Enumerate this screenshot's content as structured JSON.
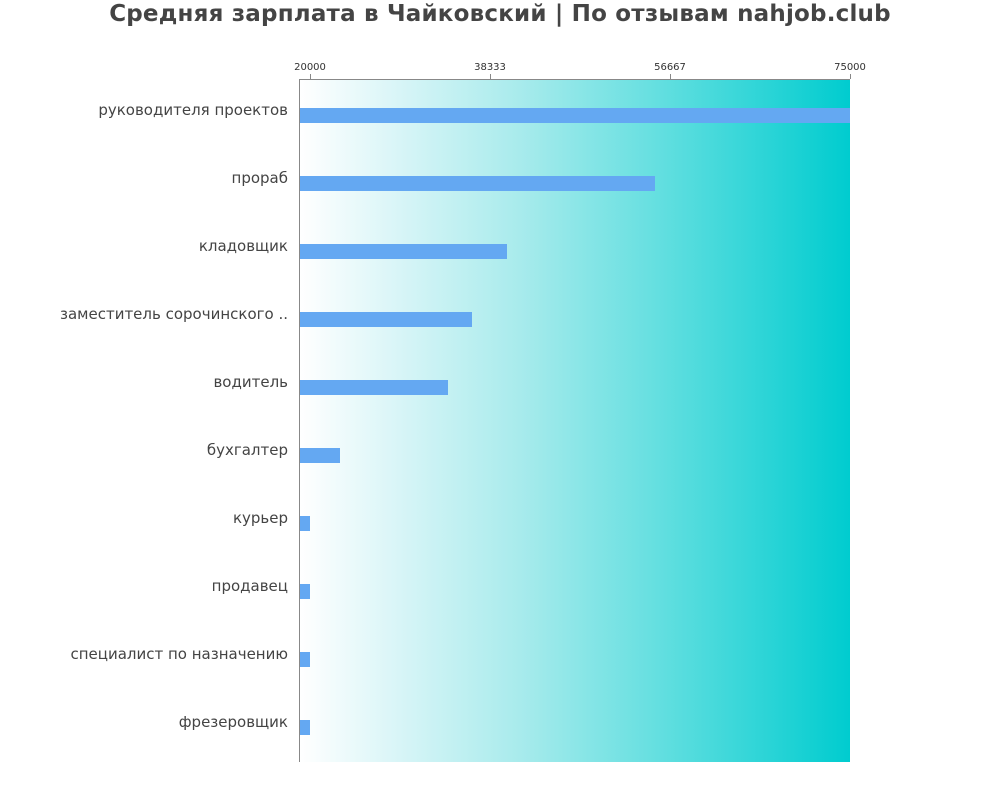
{
  "title": "Средняя зарплата в Чайковский | По отзывам nahjob.club",
  "axis": {
    "ticks": [
      "20000",
      "38333",
      "56667",
      "75000"
    ]
  },
  "categories": [
    "руководителя проектов",
    "прораб",
    "кладовщик",
    "заместитель сорочинского ..",
    "водитель",
    "бухгалтер",
    "курьер",
    "продавец",
    "специалист по назначению",
    "фрезеровщик"
  ],
  "colors": {
    "bar": "#64a8f2",
    "gradient_start": "#ffffff",
    "gradient_end": "#00cccf",
    "title": "#444444"
  },
  "chart_data": {
    "type": "bar",
    "orientation": "horizontal",
    "title": "Средняя зарплата в Чайковский | По отзывам nahjob.club",
    "categories": [
      "руководителя проектов",
      "прораб",
      "кладовщик",
      "заместитель сорочинского ..",
      "водитель",
      "бухгалтер",
      "курьер",
      "продавец",
      "специалист по назначению",
      "фрезеровщик"
    ],
    "values": [
      75000,
      55500,
      40700,
      37200,
      34800,
      24000,
      21000,
      21000,
      21000,
      21000
    ],
    "xlabel": "",
    "ylabel": "",
    "xlim": [
      20000,
      75000
    ],
    "xticks": [
      20000,
      38333,
      56667,
      75000
    ],
    "xaxis_position": "top",
    "grid": false,
    "legend": null
  }
}
